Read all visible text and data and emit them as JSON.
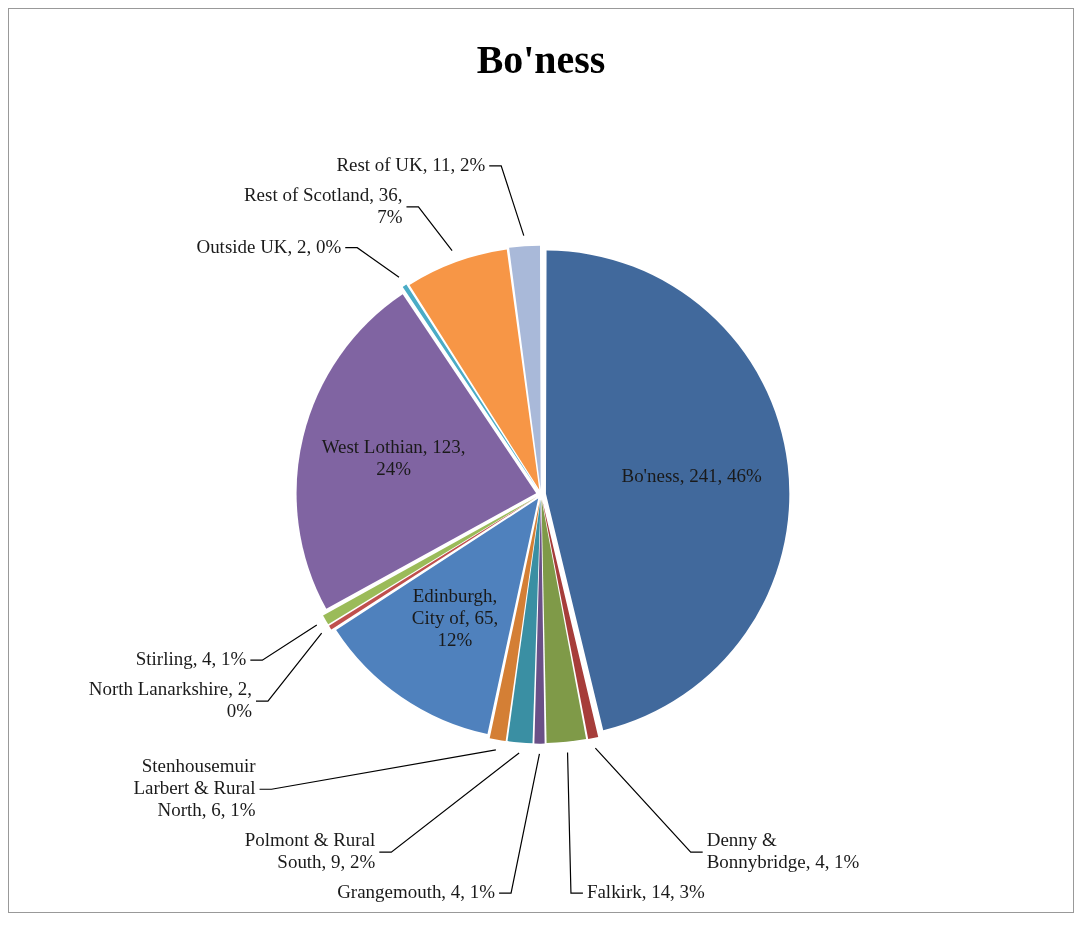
{
  "chart_data": {
    "type": "pie",
    "title": "Bo'ness",
    "categories": [
      "Bo'ness",
      "Denny & Bonnybridge",
      "Falkirk",
      "Grangemouth",
      "Polmont & Rural South",
      "Stenhousemuir Larbert & Rural North",
      "Edinburgh, City of",
      "North Lanarkshire",
      "Stirling",
      "West Lothian",
      "Outside UK",
      "Rest of Scotland",
      "Rest of UK"
    ],
    "values": [
      241,
      4,
      14,
      4,
      9,
      6,
      65,
      2,
      4,
      123,
      2,
      36,
      11
    ],
    "value_labels": [
      ", 241, 46%",
      ", 4, 1%",
      ", 14, 3%",
      ", 4, 1%",
      ", 9, 2%",
      ", 6, 1%",
      ", 65, 12%",
      ", 2, 0%",
      ", 4, 1%",
      ", 123, 24%",
      ", 2, 0%",
      ", 36, 7%",
      ", 11, 2%"
    ],
    "colors": [
      "#41699c",
      "#a63d3a",
      "#7f9a48",
      "#6a5087",
      "#3a8fa3",
      "#d47f35",
      "#4f81bd",
      "#c0504d",
      "#9bbb59",
      "#8064a2",
      "#4bacc6",
      "#f79646",
      "#a9b9d9"
    ],
    "legend": false
  }
}
